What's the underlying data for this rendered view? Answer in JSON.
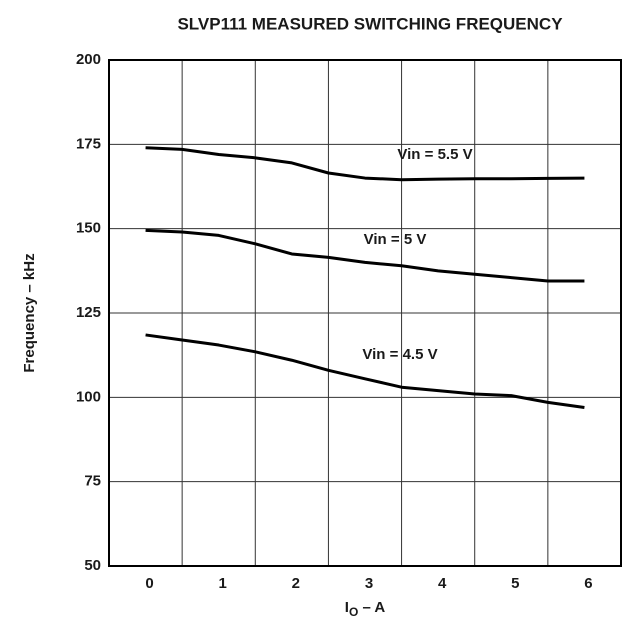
{
  "chart_data": {
    "type": "line",
    "title": "SLVP111 MEASURED SWITCHING FREQUENCY",
    "y_label": "Frequency – kHz",
    "x_label": {
      "main": "I",
      "sub": "O",
      "rest": " – A"
    },
    "x": [
      0,
      0.5,
      1,
      1.5,
      2,
      2.5,
      3,
      3.5,
      4,
      4.5,
      5,
      5.5,
      6
    ],
    "series": [
      {
        "name": "Vin = 5.5 V",
        "color": "#000000",
        "values": [
          174,
          173.5,
          172,
          171,
          169.5,
          166.5,
          165,
          164.5,
          164.7,
          164.8,
          164.8,
          164.9,
          165
        ]
      },
      {
        "name": "Vin = 5 V",
        "color": "#000000",
        "values": [
          149.5,
          149,
          148,
          145.5,
          142.5,
          141.5,
          140,
          139,
          137.5,
          136.5,
          135.5,
          134.5,
          134.5
        ]
      },
      {
        "name": "Vin = 4.5 V",
        "color": "#000000",
        "values": [
          118.5,
          117,
          115.5,
          113.5,
          111,
          108,
          105.5,
          103,
          102,
          101,
          100.5,
          98.5,
          97
        ]
      }
    ],
    "xlim": [
      -0.5,
      6.5
    ],
    "xticks": [
      0,
      1,
      2,
      3,
      4,
      5,
      6
    ],
    "xgrid": [
      0.5,
      1.5,
      2.5,
      3.5,
      4.5,
      5.5
    ],
    "ylim": [
      50,
      200
    ],
    "yticks": [
      50,
      75,
      100,
      125,
      150,
      175,
      200
    ],
    "grid": true
  }
}
